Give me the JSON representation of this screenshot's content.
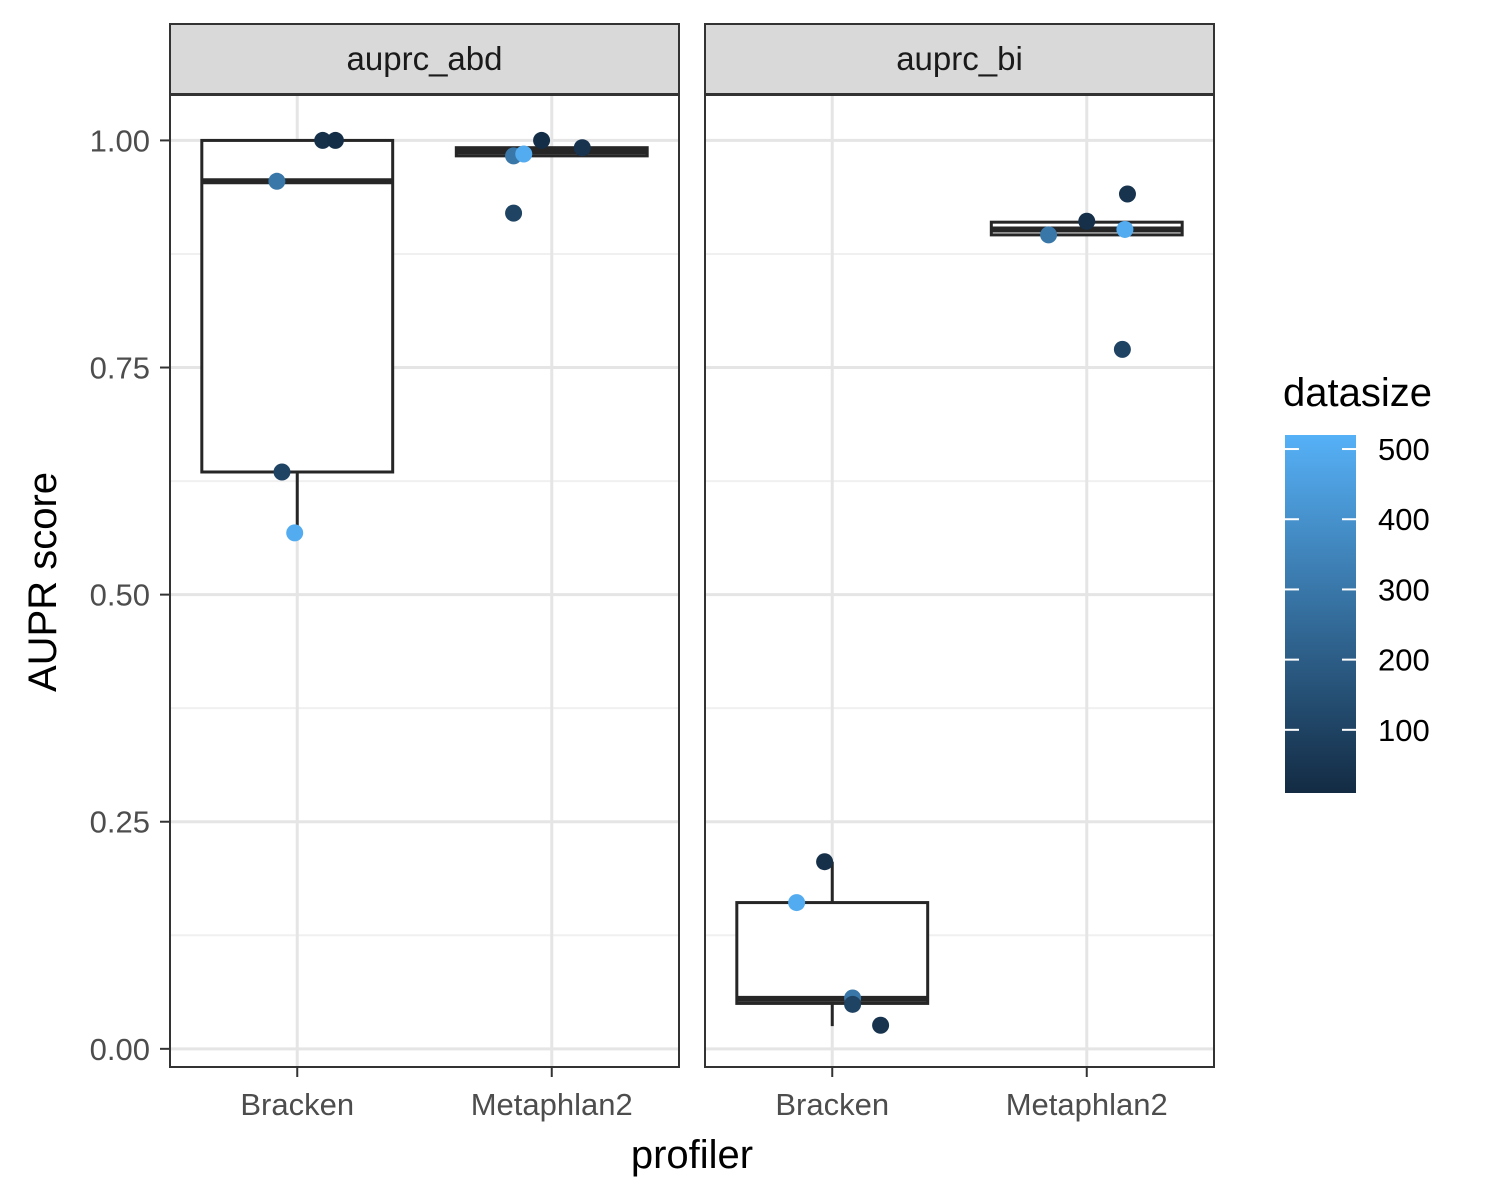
{
  "chart_data": {
    "type": "boxplot",
    "xlabel": "profiler",
    "ylabel": "AUPR score",
    "ylim": [
      -0.02,
      1.05
    ],
    "yticks": [
      "0.00",
      "0.25",
      "0.50",
      "0.75",
      "1.00"
    ],
    "categories": [
      "Bracken",
      "Metaphlan2"
    ],
    "grid": true,
    "facets": [
      {
        "name": "auprc_abd",
        "groups": [
          {
            "category": "Bracken",
            "box": {
              "lower_whisker": 0.57,
              "q1": 0.635,
              "median": 0.955,
              "q3": 1.0,
              "upper_whisker": 1.0
            },
            "points": [
              {
                "y": 1.0,
                "datasize": 30,
                "jitter": 0.1
              },
              {
                "y": 1.0,
                "datasize": 20,
                "jitter": 0.15
              },
              {
                "y": 0.955,
                "datasize": 300,
                "jitter": -0.08
              },
              {
                "y": 0.635,
                "datasize": 100,
                "jitter": -0.06
              },
              {
                "y": 0.568,
                "datasize": 500,
                "jitter": -0.01
              }
            ]
          },
          {
            "category": "Metaphlan2",
            "box": {
              "lower_whisker": 0.983,
              "q1": 0.983,
              "median": 0.988,
              "q3": 0.992,
              "upper_whisker": 0.992
            },
            "points": [
              {
                "y": 1.0,
                "datasize": 20,
                "jitter": -0.04
              },
              {
                "y": 0.992,
                "datasize": 40,
                "jitter": 0.12
              },
              {
                "y": 0.983,
                "datasize": 300,
                "jitter": -0.15
              },
              {
                "y": 0.985,
                "datasize": 500,
                "jitter": -0.11
              },
              {
                "y": 0.92,
                "datasize": 100,
                "jitter": -0.15
              }
            ]
          }
        ]
      },
      {
        "name": "auprc_bi",
        "groups": [
          {
            "category": "Bracken",
            "box": {
              "lower_whisker": 0.025,
              "q1": 0.05,
              "median": 0.055,
              "q3": 0.161,
              "upper_whisker": 0.206
            },
            "points": [
              {
                "y": 0.206,
                "datasize": 30,
                "jitter": -0.03
              },
              {
                "y": 0.161,
                "datasize": 500,
                "jitter": -0.14
              },
              {
                "y": 0.056,
                "datasize": 300,
                "jitter": 0.08
              },
              {
                "y": 0.049,
                "datasize": 100,
                "jitter": 0.08
              },
              {
                "y": 0.026,
                "datasize": 40,
                "jitter": 0.19
              }
            ]
          },
          {
            "category": "Metaphlan2",
            "box": {
              "lower_whisker": 0.896,
              "q1": 0.896,
              "median": 0.902,
              "q3": 0.91,
              "upper_whisker": 0.91
            },
            "points": [
              {
                "y": 0.941,
                "datasize": 40,
                "jitter": 0.16
              },
              {
                "y": 0.911,
                "datasize": 30,
                "jitter": 0.0
              },
              {
                "y": 0.896,
                "datasize": 300,
                "jitter": -0.15
              },
              {
                "y": 0.902,
                "datasize": 500,
                "jitter": 0.15
              },
              {
                "y": 0.77,
                "datasize": 100,
                "jitter": 0.14
              }
            ]
          }
        ]
      }
    ],
    "legend": {
      "title": "datasize",
      "placement": "right",
      "breaks": [
        100,
        200,
        300,
        400,
        500
      ],
      "range": [
        10,
        520
      ],
      "low_color": "#132B43",
      "high_color": "#56B1F7"
    }
  }
}
